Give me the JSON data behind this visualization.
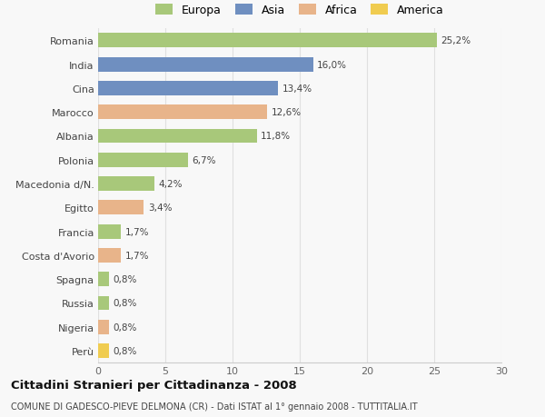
{
  "countries": [
    "Romania",
    "India",
    "Cina",
    "Marocco",
    "Albania",
    "Polonia",
    "Macedonia d/N.",
    "Egitto",
    "Francia",
    "Costa d'Avorio",
    "Spagna",
    "Russia",
    "Nigeria",
    "Perù"
  ],
  "values": [
    25.2,
    16.0,
    13.4,
    12.6,
    11.8,
    6.7,
    4.2,
    3.4,
    1.7,
    1.7,
    0.8,
    0.8,
    0.8,
    0.8
  ],
  "labels": [
    "25,2%",
    "16,0%",
    "13,4%",
    "12,6%",
    "11,8%",
    "6,7%",
    "4,2%",
    "3,4%",
    "1,7%",
    "1,7%",
    "0,8%",
    "0,8%",
    "0,8%",
    "0,8%"
  ],
  "colors": [
    "#a8c87a",
    "#6f8fc0",
    "#6f8fc0",
    "#e8b48a",
    "#a8c87a",
    "#a8c87a",
    "#a8c87a",
    "#e8b48a",
    "#a8c87a",
    "#e8b48a",
    "#a8c87a",
    "#a8c87a",
    "#e8b48a",
    "#f0cc50"
  ],
  "legend_labels": [
    "Europa",
    "Asia",
    "Africa",
    "America"
  ],
  "legend_colors": [
    "#a8c87a",
    "#6f8fc0",
    "#e8b48a",
    "#f0cc50"
  ],
  "title": "Cittadini Stranieri per Cittadinanza - 2008",
  "subtitle": "COMUNE DI GADESCO-PIEVE DELMONA (CR) - Dati ISTAT al 1° gennaio 2008 - TUTTITALIA.IT",
  "xlim": [
    0,
    30
  ],
  "xticks": [
    0,
    5,
    10,
    15,
    20,
    25,
    30
  ],
  "bg_color": "#f8f8f8",
  "grid_color": "#e0e0e0"
}
